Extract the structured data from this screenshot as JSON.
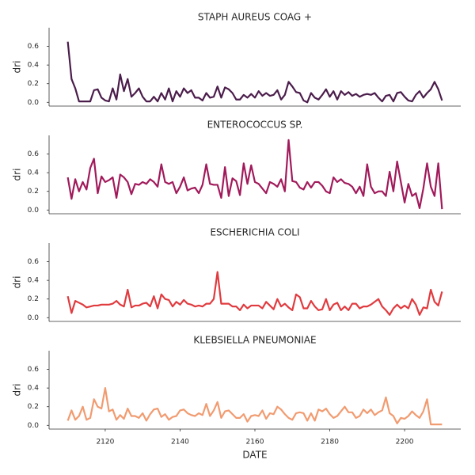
{
  "chart_data": [
    {
      "type": "line",
      "title": "STAPH AUREUS COAG +",
      "ylabel": "dri",
      "xlim": [
        2105,
        2215
      ],
      "ylim": [
        -0.04,
        0.8
      ],
      "yticks": [
        {
          "value": 0,
          "label": "0.0"
        },
        0.2,
        0.4,
        0.6
      ],
      "x": [
        2110,
        2111,
        2112,
        2113,
        2114,
        2115,
        2116,
        2117,
        2118,
        2119,
        2120,
        2121,
        2122,
        2123,
        2124,
        2125,
        2126,
        2127,
        2128,
        2129,
        2130,
        2131,
        2132,
        2133,
        2134,
        2135,
        2136,
        2137,
        2138,
        2139,
        2140,
        2141,
        2142,
        2143,
        2144,
        2145,
        2146,
        2147,
        2148,
        2149,
        2150,
        2151,
        2152,
        2153,
        2154,
        2155,
        2156,
        2157,
        2158,
        2159,
        2160,
        2161,
        2162,
        2163,
        2164,
        2165,
        2166,
        2167,
        2168,
        2169,
        2170,
        2171,
        2172,
        2173,
        2174,
        2175,
        2176,
        2177,
        2178,
        2179,
        2180,
        2181,
        2182,
        2183,
        2184,
        2185,
        2186,
        2187,
        2188,
        2189,
        2190,
        2191,
        2192,
        2193,
        2194,
        2195,
        2196,
        2197,
        2198,
        2199,
        2200,
        2201,
        2202,
        2203,
        2204,
        2205,
        2206,
        2207,
        2208,
        2209,
        2210
      ],
      "series": [
        {
          "color": "#4b1d4b",
          "values": [
            0.65,
            0.25,
            0.15,
            0.01,
            0.01,
            0.01,
            0.01,
            0.13,
            0.14,
            0.05,
            0.02,
            0.01,
            0.15,
            0.03,
            0.3,
            0.12,
            0.25,
            0.06,
            0.1,
            0.15,
            0.06,
            0.01,
            0.01,
            0.06,
            0.01,
            0.1,
            0.03,
            0.15,
            0.01,
            0.12,
            0.06,
            0.15,
            0.1,
            0.13,
            0.05,
            0.05,
            0.02,
            0.1,
            0.05,
            0.06,
            0.17,
            0.05,
            0.16,
            0.14,
            0.1,
            0.03,
            0.03,
            0.08,
            0.05,
            0.09,
            0.05,
            0.12,
            0.07,
            0.1,
            0.07,
            0.08,
            0.13,
            0.03,
            0.08,
            0.22,
            0.17,
            0.11,
            0.1,
            0.02,
            0.0,
            0.1,
            0.05,
            0.03,
            0.08,
            0.14,
            0.06,
            0.12,
            0.03,
            0.12,
            0.08,
            0.11,
            0.07,
            0.09,
            0.06,
            0.08,
            0.09,
            0.08,
            0.1,
            0.05,
            0.01,
            0.07,
            0.08,
            0.01,
            0.1,
            0.11,
            0.06,
            0.02,
            0.01,
            0.08,
            0.12,
            0.05,
            0.1,
            0.14,
            0.22,
            0.14,
            0.02
          ]
        }
      ]
    },
    {
      "type": "line",
      "title": "ENTEROCOCCUS SP.",
      "ylabel": "dri",
      "xlim": [
        2105,
        2215
      ],
      "ylim": [
        -0.04,
        0.8
      ],
      "yticks": [
        {
          "value": 0,
          "label": "0.0"
        },
        0.2,
        0.4,
        0.6
      ],
      "x": [
        2110,
        2111,
        2112,
        2113,
        2114,
        2115,
        2116,
        2117,
        2118,
        2119,
        2120,
        2121,
        2122,
        2123,
        2124,
        2125,
        2126,
        2127,
        2128,
        2129,
        2130,
        2131,
        2132,
        2133,
        2134,
        2135,
        2136,
        2137,
        2138,
        2139,
        2140,
        2141,
        2142,
        2143,
        2144,
        2145,
        2146,
        2147,
        2148,
        2149,
        2150,
        2151,
        2152,
        2153,
        2154,
        2155,
        2156,
        2157,
        2158,
        2159,
        2160,
        2161,
        2162,
        2163,
        2164,
        2165,
        2166,
        2167,
        2168,
        2169,
        2170,
        2171,
        2172,
        2173,
        2174,
        2175,
        2176,
        2177,
        2178,
        2179,
        2180,
        2181,
        2182,
        2183,
        2184,
        2185,
        2186,
        2187,
        2188,
        2189,
        2190,
        2191,
        2192,
        2193,
        2194,
        2195,
        2196,
        2197,
        2198,
        2199,
        2200,
        2201,
        2202,
        2203,
        2204,
        2205,
        2206,
        2207,
        2208,
        2209,
        2210
      ],
      "series": [
        {
          "color": "#a11a5b",
          "values": [
            0.35,
            0.12,
            0.33,
            0.2,
            0.3,
            0.22,
            0.45,
            0.55,
            0.18,
            0.36,
            0.3,
            0.32,
            0.35,
            0.13,
            0.38,
            0.35,
            0.3,
            0.17,
            0.28,
            0.27,
            0.3,
            0.28,
            0.33,
            0.3,
            0.25,
            0.49,
            0.3,
            0.28,
            0.3,
            0.18,
            0.25,
            0.35,
            0.21,
            0.23,
            0.24,
            0.18,
            0.27,
            0.49,
            0.28,
            0.27,
            0.27,
            0.13,
            0.46,
            0.15,
            0.34,
            0.31,
            0.16,
            0.5,
            0.28,
            0.48,
            0.3,
            0.28,
            0.23,
            0.18,
            0.3,
            0.28,
            0.25,
            0.33,
            0.2,
            0.75,
            0.31,
            0.3,
            0.24,
            0.22,
            0.3,
            0.24,
            0.3,
            0.3,
            0.26,
            0.2,
            0.18,
            0.35,
            0.3,
            0.33,
            0.29,
            0.28,
            0.25,
            0.18,
            0.25,
            0.15,
            0.49,
            0.25,
            0.18,
            0.2,
            0.2,
            0.15,
            0.41,
            0.2,
            0.52,
            0.3,
            0.08,
            0.28,
            0.15,
            0.18,
            0.02,
            0.23,
            0.5,
            0.25,
            0.15,
            0.5,
            0.01
          ]
        }
      ]
    },
    {
      "type": "line",
      "title": "ESCHERICHIA COLI",
      "ylabel": "dri",
      "xlim": [
        2105,
        2215
      ],
      "ylim": [
        -0.04,
        0.8
      ],
      "yticks": [
        {
          "value": 0,
          "label": "0.0"
        },
        0.2,
        0.4,
        0.6
      ],
      "x": [
        2110,
        2111,
        2112,
        2113,
        2114,
        2115,
        2116,
        2117,
        2118,
        2119,
        2120,
        2121,
        2122,
        2123,
        2124,
        2125,
        2126,
        2127,
        2128,
        2129,
        2130,
        2131,
        2132,
        2133,
        2134,
        2135,
        2136,
        2137,
        2138,
        2139,
        2140,
        2141,
        2142,
        2143,
        2144,
        2145,
        2146,
        2147,
        2148,
        2149,
        2150,
        2151,
        2152,
        2153,
        2154,
        2155,
        2156,
        2157,
        2158,
        2159,
        2160,
        2161,
        2162,
        2163,
        2164,
        2165,
        2166,
        2167,
        2168,
        2169,
        2170,
        2171,
        2172,
        2173,
        2174,
        2175,
        2176,
        2177,
        2178,
        2179,
        2180,
        2181,
        2182,
        2183,
        2184,
        2185,
        2186,
        2187,
        2188,
        2189,
        2190,
        2191,
        2192,
        2193,
        2194,
        2195,
        2196,
        2197,
        2198,
        2199,
        2200,
        2201,
        2202,
        2203,
        2204,
        2205,
        2206,
        2207,
        2208,
        2209,
        2210
      ],
      "series": [
        {
          "color": "#e03b3f",
          "values": [
            0.23,
            0.05,
            0.18,
            0.16,
            0.14,
            0.11,
            0.12,
            0.13,
            0.13,
            0.14,
            0.14,
            0.14,
            0.15,
            0.18,
            0.14,
            0.12,
            0.3,
            0.11,
            0.13,
            0.13,
            0.15,
            0.16,
            0.12,
            0.23,
            0.1,
            0.25,
            0.2,
            0.19,
            0.12,
            0.17,
            0.14,
            0.19,
            0.15,
            0.14,
            0.12,
            0.13,
            0.12,
            0.15,
            0.15,
            0.2,
            0.49,
            0.15,
            0.15,
            0.15,
            0.12,
            0.12,
            0.08,
            0.14,
            0.1,
            0.13,
            0.13,
            0.13,
            0.1,
            0.17,
            0.13,
            0.09,
            0.2,
            0.12,
            0.15,
            0.11,
            0.08,
            0.25,
            0.22,
            0.1,
            0.1,
            0.18,
            0.12,
            0.08,
            0.09,
            0.2,
            0.08,
            0.14,
            0.16,
            0.08,
            0.12,
            0.08,
            0.15,
            0.15,
            0.1,
            0.12,
            0.12,
            0.14,
            0.17,
            0.2,
            0.12,
            0.08,
            0.03,
            0.1,
            0.14,
            0.1,
            0.13,
            0.1,
            0.2,
            0.14,
            0.03,
            0.11,
            0.1,
            0.3,
            0.17,
            0.13,
            0.28
          ]
        }
      ]
    },
    {
      "type": "line",
      "title": "KLEBSIELLA PNEUMONIAE",
      "ylabel": "dri",
      "xlabel": "DATE",
      "xlim": [
        2105,
        2215
      ],
      "xticks": [
        2120,
        2140,
        2160,
        2180,
        2200
      ],
      "ylim": [
        -0.04,
        0.8
      ],
      "yticks": [
        {
          "value": 0,
          "label": "0.0"
        },
        0.2,
        0.4,
        0.6
      ],
      "x": [
        2110,
        2111,
        2112,
        2113,
        2114,
        2115,
        2116,
        2117,
        2118,
        2119,
        2120,
        2121,
        2122,
        2123,
        2124,
        2125,
        2126,
        2127,
        2128,
        2129,
        2130,
        2131,
        2132,
        2133,
        2134,
        2135,
        2136,
        2137,
        2138,
        2139,
        2140,
        2141,
        2142,
        2143,
        2144,
        2145,
        2146,
        2147,
        2148,
        2149,
        2150,
        2151,
        2152,
        2153,
        2154,
        2155,
        2156,
        2157,
        2158,
        2159,
        2160,
        2161,
        2162,
        2163,
        2164,
        2165,
        2166,
        2167,
        2168,
        2169,
        2170,
        2171,
        2172,
        2173,
        2174,
        2175,
        2176,
        2177,
        2178,
        2179,
        2180,
        2181,
        2182,
        2183,
        2184,
        2185,
        2186,
        2187,
        2188,
        2189,
        2190,
        2191,
        2192,
        2193,
        2194,
        2195,
        2196,
        2197,
        2198,
        2199,
        2200,
        2201,
        2202,
        2203,
        2204,
        2205,
        2206,
        2207,
        2208,
        2209,
        2210
      ],
      "series": [
        {
          "color": "#f19b70",
          "values": [
            0.05,
            0.16,
            0.06,
            0.1,
            0.2,
            0.06,
            0.08,
            0.28,
            0.2,
            0.18,
            0.4,
            0.15,
            0.17,
            0.06,
            0.11,
            0.07,
            0.18,
            0.1,
            0.1,
            0.08,
            0.13,
            0.05,
            0.12,
            0.17,
            0.18,
            0.09,
            0.12,
            0.06,
            0.09,
            0.1,
            0.16,
            0.17,
            0.13,
            0.11,
            0.1,
            0.13,
            0.11,
            0.23,
            0.1,
            0.16,
            0.25,
            0.08,
            0.15,
            0.16,
            0.12,
            0.08,
            0.08,
            0.12,
            0.04,
            0.1,
            0.11,
            0.1,
            0.16,
            0.07,
            0.13,
            0.12,
            0.2,
            0.17,
            0.12,
            0.08,
            0.06,
            0.13,
            0.14,
            0.13,
            0.05,
            0.13,
            0.05,
            0.17,
            0.15,
            0.18,
            0.12,
            0.08,
            0.1,
            0.15,
            0.2,
            0.14,
            0.14,
            0.08,
            0.1,
            0.17,
            0.13,
            0.17,
            0.11,
            0.14,
            0.16,
            0.3,
            0.13,
            0.1,
            0.02,
            0.08,
            0.07,
            0.1,
            0.15,
            0.11,
            0.08,
            0.15,
            0.28,
            0.01,
            0.01,
            0.01,
            0.01
          ]
        }
      ]
    }
  ]
}
